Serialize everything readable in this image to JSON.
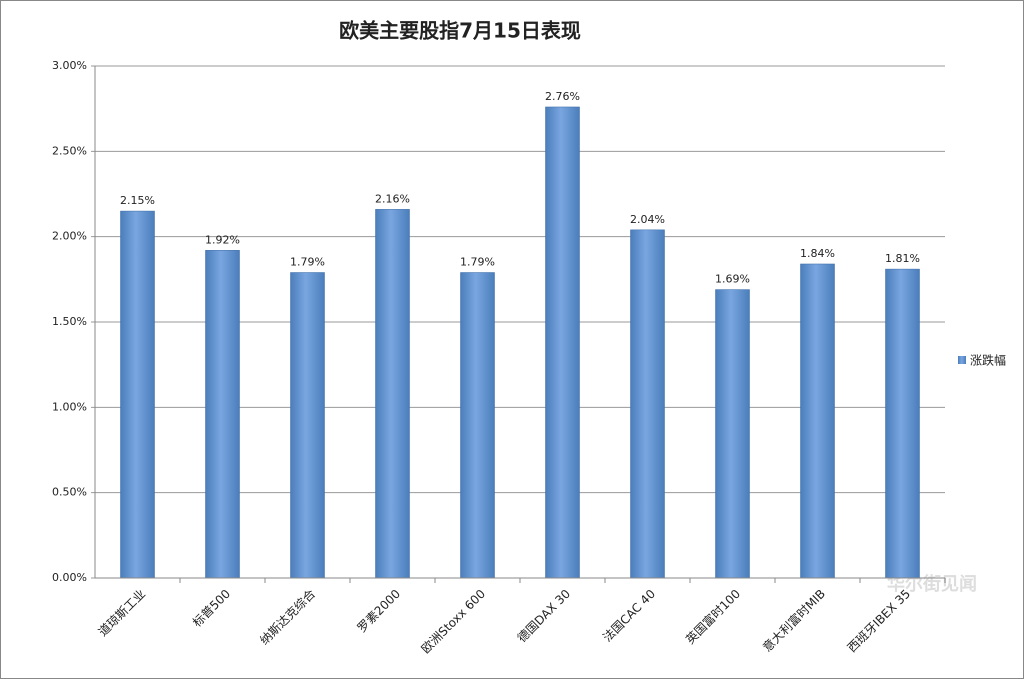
{
  "chart_data": {
    "type": "bar",
    "title": "欧美主要股指7月15日表现",
    "categories": [
      "道琼斯工业",
      "标普500",
      "纳斯达克综合",
      "罗素2000",
      "欧洲Stoxx 600",
      "德国DAX 30",
      "法国CAC 40",
      "英国富时100",
      "意大利富时MIB",
      "西班牙IBEX 35"
    ],
    "series": [
      {
        "name": "涨跌幅",
        "color": "#4a7ebb",
        "values": [
          2.15,
          1.92,
          1.79,
          2.16,
          1.79,
          2.76,
          2.04,
          1.69,
          1.84,
          1.81
        ],
        "value_labels": [
          "2.15%",
          "1.92%",
          "1.79%",
          "2.16%",
          "1.79%",
          "2.76%",
          "2.04%",
          "1.69%",
          "1.84%",
          "1.81%"
        ]
      }
    ],
    "ylim": [
      0,
      3
    ],
    "yticks": [
      {
        "value": 0,
        "label": "0.00%"
      },
      {
        "value": 0.5,
        "label": "0.50%"
      },
      {
        "value": 1,
        "label": "1.00%"
      },
      {
        "value": 1.5,
        "label": "1.50%"
      },
      {
        "value": 2,
        "label": "2.00%"
      },
      {
        "value": 2.5,
        "label": "2.50%"
      },
      {
        "value": 3,
        "label": "3.00%"
      }
    ],
    "grid": true,
    "legend": "right",
    "watermark": "华尔街见闻"
  }
}
